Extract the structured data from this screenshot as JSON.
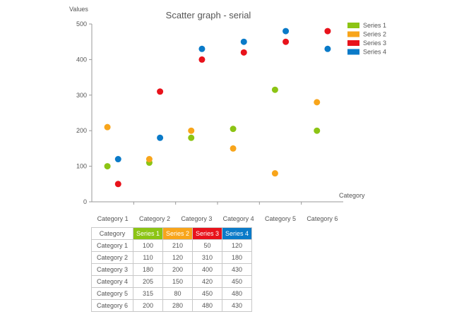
{
  "chart_data": {
    "type": "scatter",
    "title": "Scatter graph - serial",
    "ylabel": "Values",
    "xlabel": "Category",
    "ylim": [
      0,
      500
    ],
    "yticks": [
      0,
      100,
      200,
      300,
      400,
      500
    ],
    "grid": false,
    "legend_position": "top-right",
    "categories": [
      "Category 1",
      "Category 2",
      "Category 3",
      "Category 4",
      "Category 5",
      "Category 6"
    ],
    "series": [
      {
        "name": "Series 1",
        "color": "#8cc414",
        "values": [
          100,
          110,
          180,
          205,
          315,
          200
        ]
      },
      {
        "name": "Series 2",
        "color": "#f8a51b",
        "values": [
          210,
          120,
          200,
          150,
          80,
          280
        ]
      },
      {
        "name": "Series 3",
        "color": "#e8121b",
        "values": [
          50,
          310,
          400,
          420,
          450,
          480
        ]
      },
      {
        "name": "Series 4",
        "color": "#0a7ac8",
        "values": [
          120,
          180,
          430,
          450,
          480,
          430
        ]
      }
    ]
  },
  "table": {
    "header": "Category"
  }
}
